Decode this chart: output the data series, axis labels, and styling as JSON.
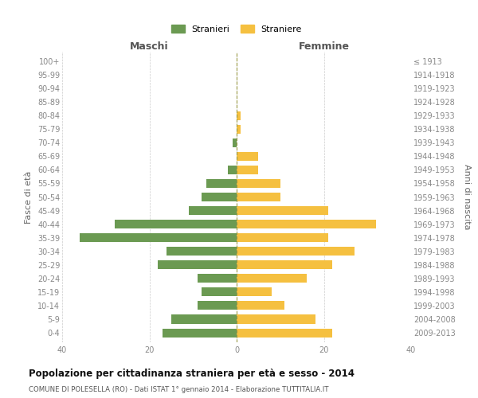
{
  "age_groups": [
    "0-4",
    "5-9",
    "10-14",
    "15-19",
    "20-24",
    "25-29",
    "30-34",
    "35-39",
    "40-44",
    "45-49",
    "50-54",
    "55-59",
    "60-64",
    "65-69",
    "70-74",
    "75-79",
    "80-84",
    "85-89",
    "90-94",
    "95-99",
    "100+"
  ],
  "birth_years": [
    "2009-2013",
    "2004-2008",
    "1999-2003",
    "1994-1998",
    "1989-1993",
    "1984-1988",
    "1979-1983",
    "1974-1978",
    "1969-1973",
    "1964-1968",
    "1959-1963",
    "1954-1958",
    "1949-1953",
    "1944-1948",
    "1939-1943",
    "1934-1938",
    "1929-1933",
    "1924-1928",
    "1919-1923",
    "1914-1918",
    "≤ 1913"
  ],
  "maschi": [
    17,
    15,
    9,
    8,
    9,
    18,
    16,
    36,
    28,
    11,
    8,
    7,
    2,
    0,
    1,
    0,
    0,
    0,
    0,
    0,
    0
  ],
  "femmine": [
    22,
    18,
    11,
    8,
    16,
    22,
    27,
    21,
    32,
    21,
    10,
    10,
    5,
    5,
    0,
    1,
    1,
    0,
    0,
    0,
    0
  ],
  "maschi_color": "#6b9a52",
  "femmine_color": "#f5c040",
  "background_color": "#ffffff",
  "grid_color": "#cccccc",
  "title": "Popolazione per cittadinanza straniera per età e sesso - 2014",
  "subtitle": "COMUNE DI POLESELLA (RO) - Dati ISTAT 1° gennaio 2014 - Elaborazione TUTTITALIA.IT",
  "ylabel_left": "Fasce di età",
  "ylabel_right": "Anni di nascita",
  "legend_maschi": "Stranieri",
  "legend_femmine": "Straniere",
  "xlim": 40,
  "maschi_header": "Maschi",
  "femmine_header": "Femmine"
}
